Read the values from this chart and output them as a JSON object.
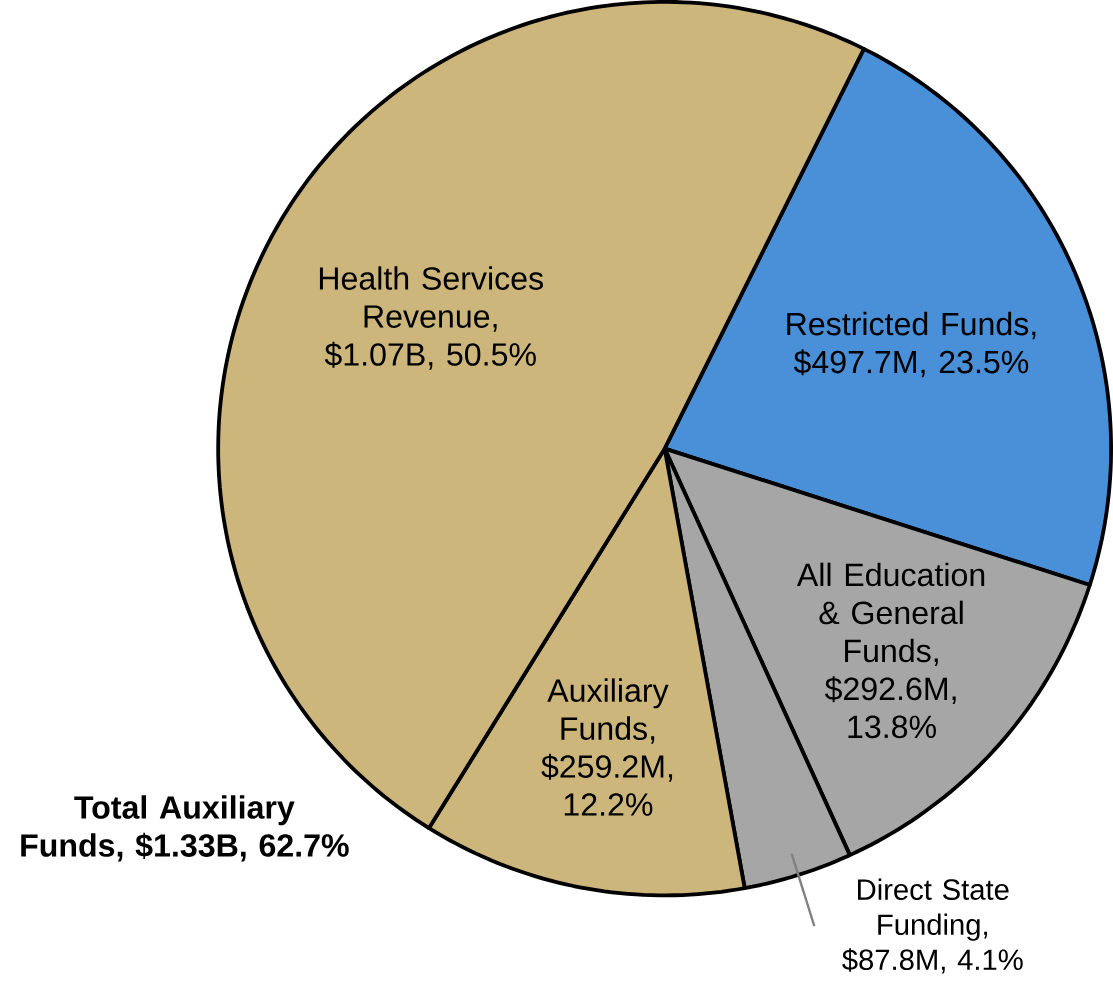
{
  "chart_data": {
    "type": "pie",
    "categories": [
      "Restricted Funds, $497.7M, 23.5%",
      "All Education & General Funds, $292.6M, 13.8%",
      "Direct State Funding, $87.8M, 4.1%",
      "Auxiliary Funds, $259.2M, 12.2%",
      "Health Services Revenue, $1.07B, 50.5%"
    ],
    "values": [
      23.5,
      13.8,
      4.1,
      12.2,
      50.5
    ],
    "colors": [
      "#4a90d9",
      "#a5a6a5",
      "#a5a6a5",
      "#cdb67b",
      "#cdb67b"
    ],
    "annotations": [
      "Total Auxiliary Funds, $1.33B, 62.7%"
    ]
  }
}
